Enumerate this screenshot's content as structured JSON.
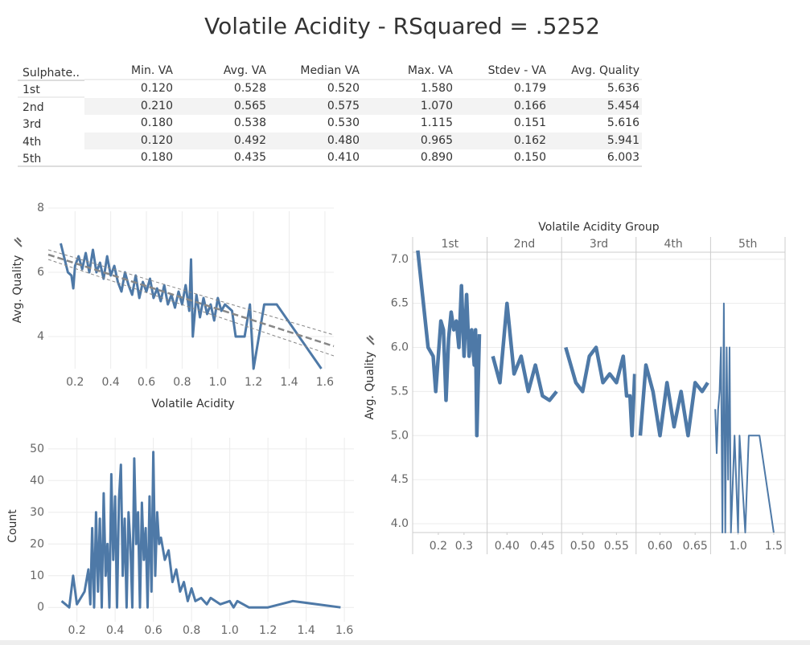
{
  "title": "Volatile Acidity  - RSquared = .5252",
  "table": {
    "columns": [
      "Sulphate..",
      "Min. VA",
      "Avg. VA",
      "Median VA",
      "Max. VA",
      "Stdev - VA",
      "Avg. Quality"
    ],
    "rows": [
      [
        "1st",
        "0.120",
        "0.528",
        "0.520",
        "1.580",
        "0.179",
        "5.636"
      ],
      [
        "2nd",
        "0.210",
        "0.565",
        "0.575",
        "1.070",
        "0.166",
        "5.454"
      ],
      [
        "3rd",
        "0.180",
        "0.538",
        "0.530",
        "1.115",
        "0.151",
        "5.616"
      ],
      [
        "4th",
        "0.120",
        "0.492",
        "0.480",
        "0.965",
        "0.162",
        "5.941"
      ],
      [
        "5th",
        "0.180",
        "0.435",
        "0.410",
        "0.890",
        "0.150",
        "6.003"
      ]
    ]
  },
  "chart_data": [
    {
      "type": "line",
      "x_label": "Volatile Acidity",
      "y_label": "Avg. Quality",
      "color": "#4e79a7",
      "grid": true,
      "xlim": [
        0.05,
        1.65
      ],
      "ylim": [
        3,
        7.9
      ],
      "xticks": [
        0.2,
        0.4,
        0.6,
        0.8,
        {
          "value": 1,
          "label": "1.0"
        },
        1.2,
        1.4,
        1.6
      ],
      "yticks": [
        4,
        6,
        8
      ],
      "x": [
        0.12,
        0.16,
        0.18,
        0.19,
        0.2,
        0.22,
        0.24,
        0.26,
        0.28,
        0.3,
        0.32,
        0.34,
        0.36,
        0.38,
        0.4,
        0.42,
        0.44,
        0.46,
        0.48,
        0.5,
        0.52,
        0.54,
        0.56,
        0.58,
        0.6,
        0.62,
        0.64,
        0.66,
        0.68,
        0.7,
        0.72,
        0.74,
        0.76,
        0.78,
        0.8,
        0.82,
        0.84,
        0.85,
        0.86,
        0.88,
        0.9,
        0.92,
        0.94,
        0.96,
        0.98,
        1.0,
        1.02,
        1.04,
        1.08,
        1.1,
        1.15,
        1.18,
        1.2,
        1.26,
        1.33,
        1.58
      ],
      "values": [
        6.9,
        6.0,
        5.9,
        5.5,
        6.2,
        6.5,
        6.1,
        6.6,
        6.0,
        6.7,
        6.0,
        6.3,
        5.8,
        6.5,
        5.9,
        6.2,
        5.7,
        5.4,
        6.0,
        5.6,
        5.3,
        5.9,
        5.2,
        5.7,
        5.4,
        5.8,
        5.2,
        5.5,
        5.1,
        5.6,
        5.0,
        5.3,
        4.9,
        5.4,
        5.0,
        5.6,
        4.8,
        6.4,
        4.0,
        5.3,
        4.6,
        5.2,
        4.7,
        5.0,
        4.5,
        5.2,
        4.8,
        5.0,
        4.8,
        4.0,
        4.0,
        5.0,
        3.0,
        5.0,
        5.0,
        3.0
      ],
      "trend": {
        "x": [
          0.05,
          1.65
        ],
        "values": [
          6.55,
          3.7
        ],
        "upper": [
          6.7,
          4.05
        ],
        "lower": [
          6.4,
          3.4
        ]
      }
    },
    {
      "type": "line",
      "y_label": "Count",
      "color": "#4e79a7",
      "grid": true,
      "xlim": [
        0.05,
        1.65
      ],
      "ylim": [
        -4.5,
        53.5
      ],
      "xticks": [
        0.2,
        0.4,
        0.6,
        0.8,
        {
          "value": 1,
          "label": "1.0"
        },
        1.2,
        1.4,
        1.6
      ],
      "yticks": [
        0,
        10,
        20,
        30,
        40,
        50
      ],
      "x": [
        0.12,
        0.16,
        0.18,
        0.2,
        0.22,
        0.24,
        0.26,
        0.27,
        0.28,
        0.29,
        0.3,
        0.31,
        0.32,
        0.33,
        0.34,
        0.35,
        0.36,
        0.37,
        0.38,
        0.39,
        0.4,
        0.41,
        0.42,
        0.43,
        0.44,
        0.45,
        0.46,
        0.47,
        0.48,
        0.49,
        0.5,
        0.51,
        0.52,
        0.53,
        0.54,
        0.55,
        0.56,
        0.57,
        0.58,
        0.59,
        0.6,
        0.61,
        0.62,
        0.63,
        0.64,
        0.66,
        0.68,
        0.7,
        0.72,
        0.74,
        0.76,
        0.78,
        0.8,
        0.82,
        0.85,
        0.88,
        0.9,
        0.95,
        1.0,
        1.02,
        1.04,
        1.1,
        1.2,
        1.33,
        1.58
      ],
      "values": [
        2,
        0,
        10,
        1,
        3,
        5,
        12,
        1,
        25,
        0,
        30,
        5,
        28,
        0,
        36,
        10,
        20,
        0,
        42,
        15,
        35,
        0,
        34,
        45,
        10,
        28,
        0,
        30,
        20,
        0,
        47,
        20,
        30,
        0,
        33,
        15,
        25,
        0,
        35,
        5,
        49,
        10,
        30,
        20,
        22,
        15,
        18,
        8,
        12,
        5,
        8,
        2,
        6,
        2,
        3,
        1,
        3,
        1,
        2,
        0,
        2,
        0,
        0,
        2,
        0
      ]
    },
    {
      "type": "line",
      "facet_title": "Volatile Acidity Group",
      "y_label": "Avg. Quality",
      "color": "#4e79a7",
      "grid": true,
      "ylim": [
        3.9,
        7.08
      ],
      "yticks": [
        {
          "value": 4,
          "label": "4.0"
        },
        4.5,
        {
          "value": 5,
          "label": "5.0"
        },
        5.5,
        {
          "value": 6,
          "label": "6.0"
        },
        6.5,
        {
          "value": 7,
          "label": "7.0"
        }
      ],
      "panels": [
        {
          "name": "1st",
          "xlim": [
            0.1,
            0.39
          ],
          "xticks": [
            0.2,
            0.3
          ],
          "x": [
            0.12,
            0.16,
            0.18,
            0.19,
            0.2,
            0.21,
            0.22,
            0.23,
            0.24,
            0.25,
            0.26,
            0.27,
            0.28,
            0.29,
            0.3,
            0.31,
            0.32,
            0.33,
            0.34,
            0.345,
            0.35,
            0.36
          ],
          "values": [
            7.1,
            6.0,
            5.9,
            5.5,
            5.9,
            6.3,
            6.2,
            5.4,
            6.1,
            6.4,
            6.2,
            6.3,
            6.0,
            6.7,
            5.9,
            6.6,
            5.9,
            6.2,
            5.8,
            6.2,
            5.0,
            6.15
          ]
        },
        {
          "name": "2nd",
          "xlim": [
            0.372,
            0.477
          ],
          "xticks": [
            {
              "value": 0.4,
              "label": "0.40"
            },
            0.45
          ],
          "x": [
            0.38,
            0.39,
            0.4,
            0.41,
            0.42,
            0.43,
            0.44,
            0.45,
            0.46,
            0.47
          ],
          "values": [
            5.9,
            5.6,
            6.5,
            5.7,
            5.9,
            5.5,
            5.8,
            5.45,
            5.4,
            5.5
          ]
        },
        {
          "name": "3rd",
          "xlim": [
            0.469,
            0.579
          ],
          "xticks": [
            {
              "value": 0.5,
              "label": "0.50"
            },
            0.55
          ],
          "x": [
            0.475,
            0.49,
            0.5,
            0.51,
            0.52,
            0.53,
            0.54,
            0.55,
            0.56,
            0.565,
            0.57,
            0.573,
            0.577
          ],
          "values": [
            6.0,
            5.6,
            5.5,
            5.9,
            6.0,
            5.6,
            5.7,
            5.6,
            5.9,
            5.45,
            5.45,
            5.0,
            5.7
          ]
        },
        {
          "name": "4th",
          "xlim": [
            0.566,
            0.672
          ],
          "xticks": [
            {
              "value": 0.6,
              "label": "0.60"
            },
            0.65
          ],
          "x": [
            0.572,
            0.58,
            0.59,
            0.6,
            0.61,
            0.62,
            0.63,
            0.64,
            0.65,
            0.66,
            0.668
          ],
          "values": [
            5.0,
            5.8,
            5.5,
            5.0,
            5.6,
            5.1,
            5.5,
            5.0,
            5.6,
            5.5,
            5.6
          ]
        },
        {
          "name": "5th",
          "xlim": [
            0.614,
            1.659
          ],
          "xticks": [
            {
              "value": 1,
              "label": "1.0"
            },
            1.5
          ],
          "x": [
            0.68,
            0.7,
            0.72,
            0.74,
            0.76,
            0.78,
            0.8,
            0.82,
            0.84,
            0.86,
            0.88,
            0.9,
            0.95,
            1.0,
            1.02,
            1.1,
            1.15,
            1.3,
            1.5
          ],
          "values": [
            5.3,
            4.8,
            5.3,
            5.5,
            6.0,
            3.9,
            6.5,
            3.9,
            6.0,
            4.5,
            6.0,
            3.9,
            5.0,
            3.9,
            5.0,
            3.9,
            5.0,
            5.0,
            3.9
          ]
        }
      ]
    }
  ]
}
